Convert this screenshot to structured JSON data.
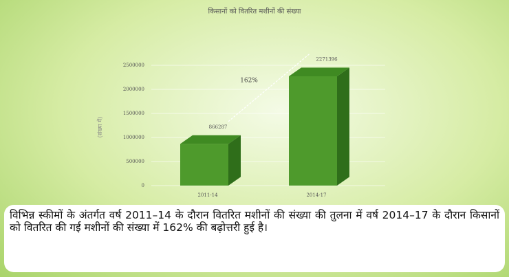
{
  "chart_data": {
    "type": "bar",
    "title": "किसानों को वितरित मशीनों की संख्या",
    "y_label": "(संख्या में)",
    "categories": [
      "2011-14",
      "2014-17"
    ],
    "values": [
      866287,
      2271396
    ],
    "color": "#4e9a2c",
    "ylim": [
      0,
      2500000
    ],
    "yticks": [
      0,
      500000,
      1000000,
      1500000,
      2000000,
      2500000
    ],
    "grid": true,
    "annotation": "162%"
  },
  "caption": "विभिन्न स्कीमों के अंतर्गत वर्ष 2011–14 के दौरान वितरित मशीनों की संख्या की तुलना में वर्ष 2014–17 के दौरान किसानों को वितरित की गई मशीनों की संख्या में 162% की बढ़ोत्तरी हुई है।"
}
